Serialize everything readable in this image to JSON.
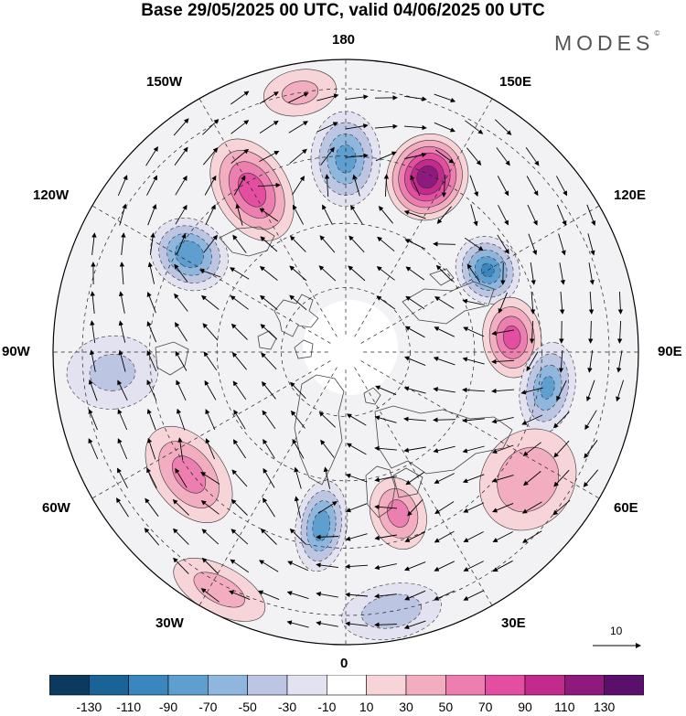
{
  "title": "Base 29/05/2025 00 UTC, valid 04/06/2025 00 UTC",
  "logo": {
    "text": "MODES",
    "mark": "©"
  },
  "longitude_labels": {
    "top": "180",
    "bottom": "0",
    "left": "90W",
    "right": "90E",
    "upper_left_1": "150W",
    "upper_left_2": "120W",
    "upper_right_1": "150E",
    "upper_right_2": "120E",
    "lower_left_1": "60W",
    "lower_left_2": "30W",
    "lower_right_1": "60E",
    "lower_right_2": "30E"
  },
  "vector_reference": {
    "value": "10"
  },
  "colorbar": {
    "colors": [
      "#0b3a5e",
      "#1a6397",
      "#3a86bf",
      "#5e9fcf",
      "#8fb6dc",
      "#bcc6e3",
      "#e2e2f0",
      "#ffffff",
      "#f7d4d8",
      "#f2aec0",
      "#ec7fb0",
      "#e34ea1",
      "#c22a8c",
      "#8e1a7d",
      "#5a0f6b"
    ],
    "tick_labels": [
      "-130",
      "-110",
      "-90",
      "-70",
      "-50",
      "-30",
      "-10",
      "10",
      "30",
      "50",
      "70",
      "90",
      "110",
      "130"
    ]
  },
  "anomaly_centres": [
    {
      "lon": 180,
      "lat_r": 0.66,
      "value": -75,
      "sx": 38,
      "sy": 52
    },
    {
      "lon": 155,
      "lat_r": 0.66,
      "value": 125,
      "sx": 44,
      "sy": 48
    },
    {
      "lon": 120,
      "lat_r": 0.56,
      "value": -90,
      "sx": 38,
      "sy": 34
    },
    {
      "lon": 95,
      "lat_r": 0.57,
      "value": 75,
      "sx": 44,
      "sy": 32
    },
    {
      "lon": 80,
      "lat_r": 0.7,
      "value": -70,
      "sx": 50,
      "sy": 30
    },
    {
      "lon": 55,
      "lat_r": 0.76,
      "value": 45,
      "sx": 58,
      "sy": 50
    },
    {
      "lon": 18,
      "lat_r": 0.58,
      "value": 55,
      "sx": 30,
      "sy": 40
    },
    {
      "lon": -8,
      "lat_r": 0.6,
      "value": -80,
      "sx": 28,
      "sy": 50
    },
    {
      "lon": 10,
      "lat_r": 0.9,
      "value": -40,
      "sx": 55,
      "sy": 30
    },
    {
      "lon": -28,
      "lat_r": 0.92,
      "value": 35,
      "sx": 55,
      "sy": 26
    },
    {
      "lon": -52,
      "lat_r": 0.68,
      "value": 55,
      "sx": 60,
      "sy": 38
    },
    {
      "lon": -85,
      "lat_r": 0.8,
      "value": -30,
      "sx": 40,
      "sy": 50
    },
    {
      "lon": -122,
      "lat_r": 0.63,
      "value": -85,
      "sx": 38,
      "sy": 44
    },
    {
      "lon": -150,
      "lat_r": 0.64,
      "value": 80,
      "sx": 40,
      "sy": 60
    },
    {
      "lon": -170,
      "lat_r": 0.9,
      "value": 30,
      "sx": 40,
      "sy": 25
    }
  ]
}
